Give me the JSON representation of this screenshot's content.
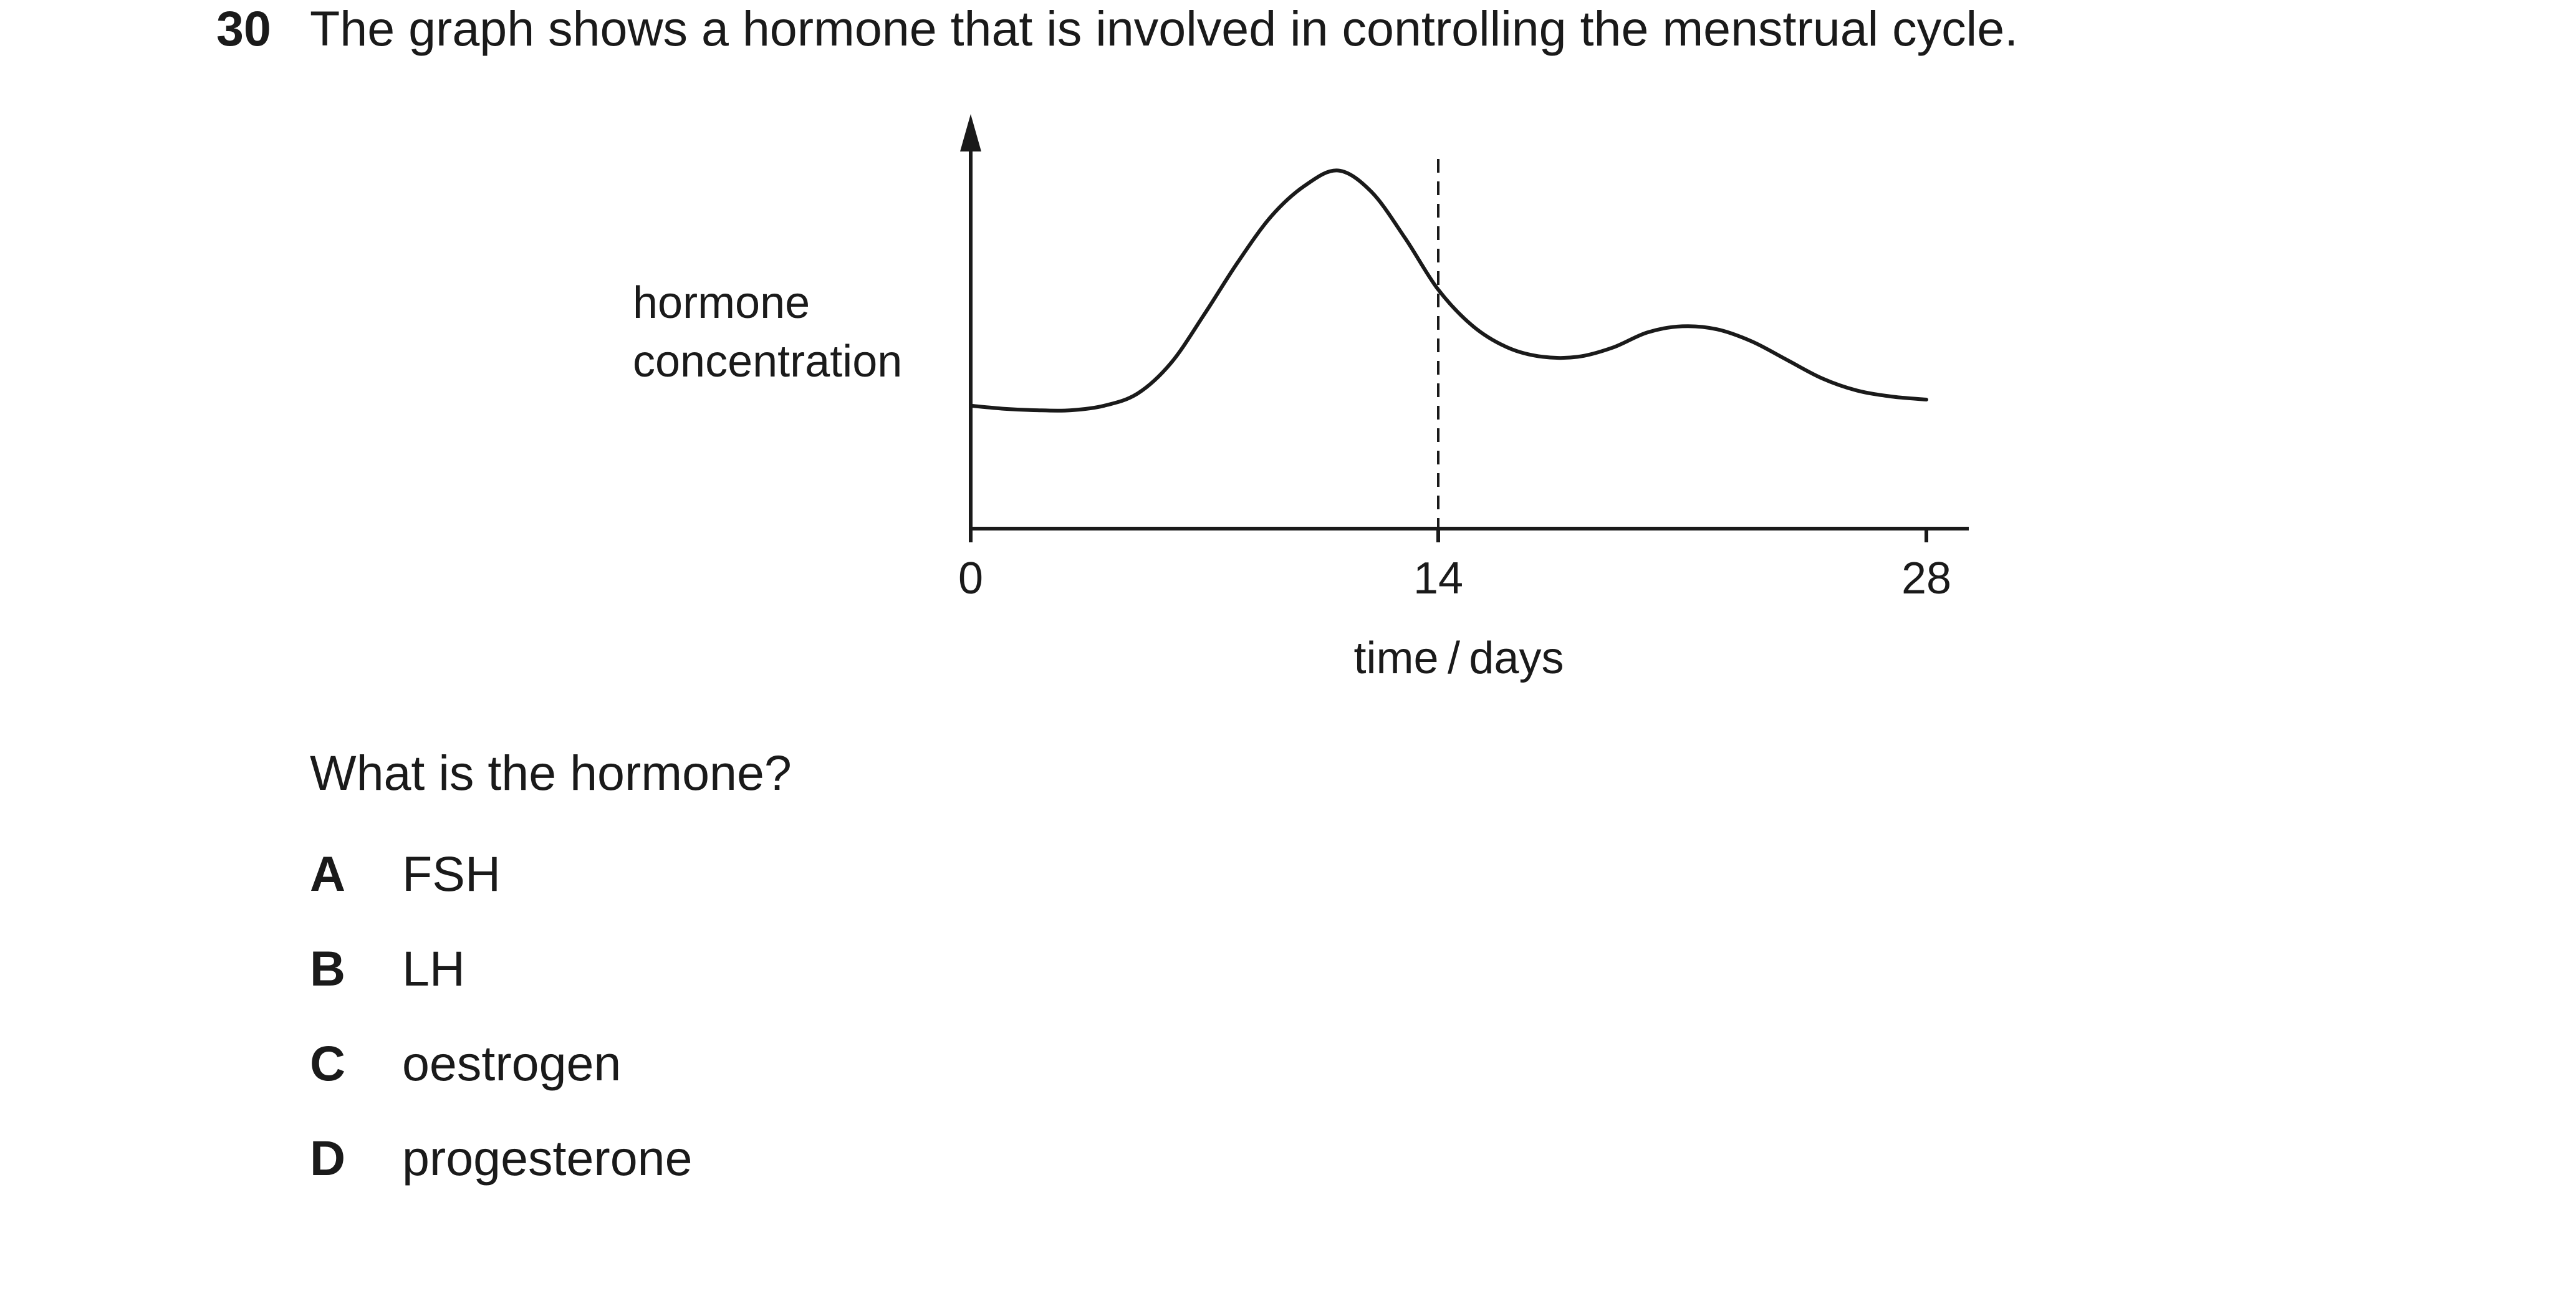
{
  "question": {
    "number": "30",
    "stem": "The graph shows a hormone that is involved in controlling the menstrual cycle.",
    "prompt": "What is the hormone?",
    "options": [
      {
        "letter": "A",
        "text": "FSH"
      },
      {
        "letter": "B",
        "text": "LH"
      },
      {
        "letter": "C",
        "text": "oestrogen"
      },
      {
        "letter": "D",
        "text": "progesterone"
      }
    ]
  },
  "chart_data": {
    "type": "line",
    "ylabel_line1": "hormone",
    "ylabel_line2": "concentration",
    "xlabel": "time / days",
    "xticks": [
      "0",
      "14",
      "28"
    ],
    "xlim": [
      0,
      28
    ],
    "grid": false,
    "marker_line_day": 14,
    "series": [
      {
        "x": [
          0,
          1,
          2,
          3,
          4,
          5,
          6,
          7,
          8,
          9,
          10,
          11,
          12,
          13,
          14,
          15,
          16,
          17,
          18,
          19,
          20,
          21,
          22,
          23,
          24,
          25,
          26,
          27,
          28
        ],
        "y": [
          0.28,
          0.27,
          0.265,
          0.265,
          0.28,
          0.32,
          0.42,
          0.58,
          0.75,
          0.9,
          1.0,
          1.05,
          0.98,
          0.83,
          0.66,
          0.54,
          0.47,
          0.44,
          0.44,
          0.47,
          0.52,
          0.54,
          0.53,
          0.49,
          0.43,
          0.37,
          0.33,
          0.31,
          0.3
        ]
      }
    ]
  }
}
